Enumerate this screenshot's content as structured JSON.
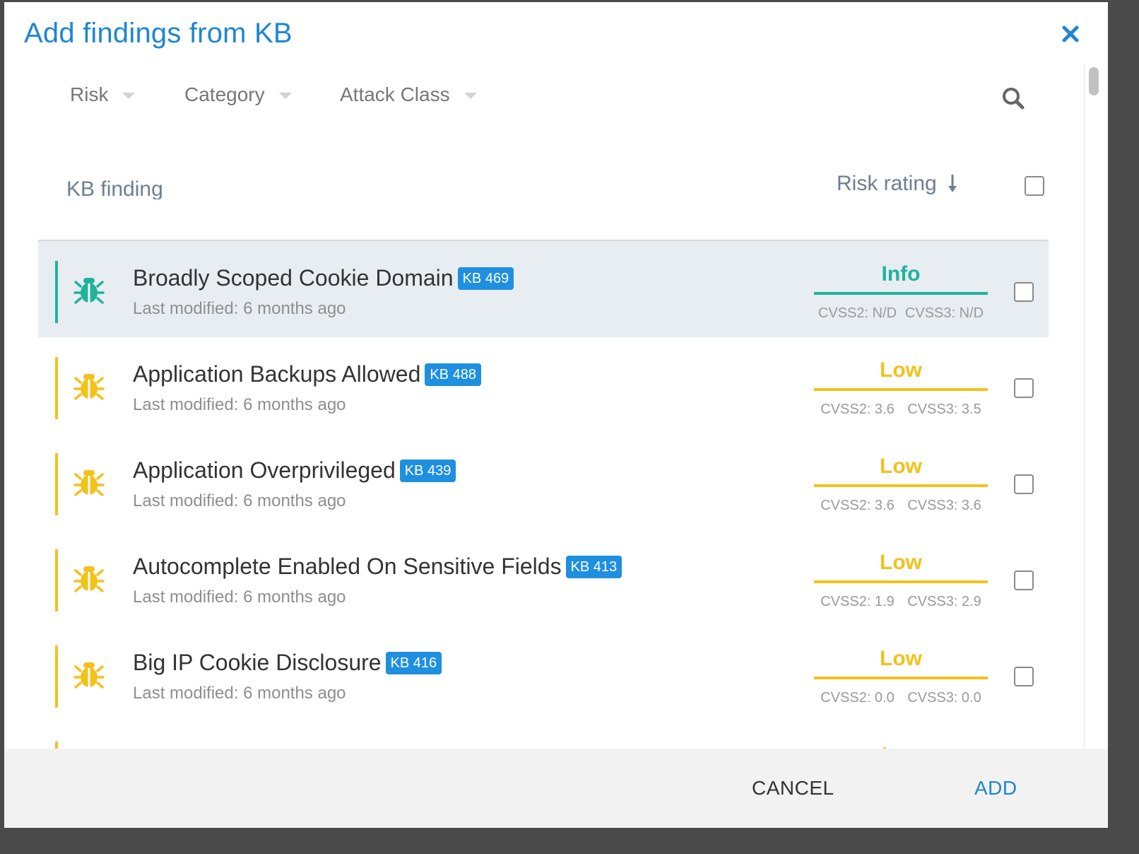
{
  "modal": {
    "title": "Add findings from KB",
    "close_icon": "close-icon"
  },
  "filters": [
    {
      "label": "Risk"
    },
    {
      "label": "Category"
    },
    {
      "label": "Attack Class"
    }
  ],
  "search_icon": "search-icon",
  "columns": {
    "finding": "KB finding",
    "risk": "Risk rating"
  },
  "colors": {
    "accent": "#1f86d1",
    "info": "#1fb39a",
    "low": "#f2c21b",
    "kb_badge": "#1f8fe0"
  },
  "findings": [
    {
      "title": "Broadly Scoped Cookie Domain",
      "kb": "KB 469",
      "modified": "Last modified: 6 months ago",
      "risk": "Info",
      "cvss2": "CVSS2: N/D",
      "cvss3": "CVSS3: N/D",
      "color": "#1fb39a",
      "selected": true
    },
    {
      "title": "Application Backups Allowed",
      "kb": "KB 488",
      "modified": "Last modified: 6 months ago",
      "risk": "Low",
      "cvss2": "CVSS2: 3.6",
      "cvss3": "CVSS3: 3.5",
      "color": "#f2c21b",
      "selected": false
    },
    {
      "title": "Application Overprivileged",
      "kb": "KB 439",
      "modified": "Last modified: 6 months ago",
      "risk": "Low",
      "cvss2": "CVSS2: 3.6",
      "cvss3": "CVSS3: 3.6",
      "color": "#f2c21b",
      "selected": false
    },
    {
      "title": "Autocomplete Enabled On Sensitive Fields",
      "kb": "KB 413",
      "modified": "Last modified: 6 months ago",
      "risk": "Low",
      "cvss2": "CVSS2: 1.9",
      "cvss3": "CVSS3: 2.9",
      "color": "#f2c21b",
      "selected": false
    },
    {
      "title": "Big IP Cookie Disclosure",
      "kb": "KB 416",
      "modified": "Last modified: 6 months ago",
      "risk": "Low",
      "cvss2": "CVSS2: 0.0",
      "cvss3": "CVSS3: 0.0",
      "color": "#f2c21b",
      "selected": false
    }
  ],
  "footer": {
    "cancel": "CANCEL",
    "add": "ADD"
  }
}
